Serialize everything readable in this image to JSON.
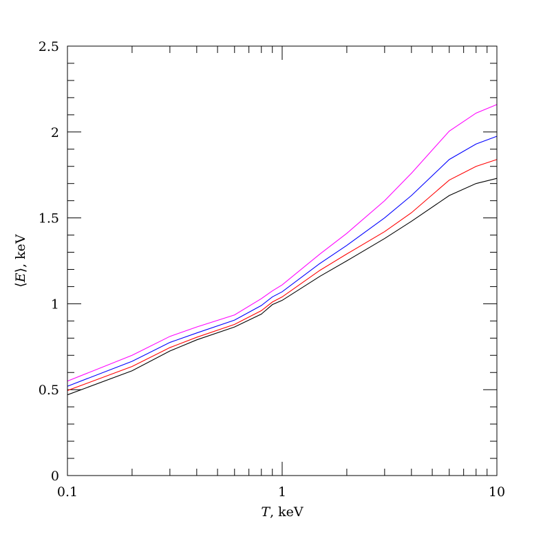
{
  "chart_data": {
    "type": "line",
    "x_scale": "log",
    "xlim": [
      0.1,
      10
    ],
    "ylim": [
      0,
      2.5
    ],
    "grid": false,
    "legend": "none",
    "xlabel": {
      "symbol": "T",
      "unit": ", keV"
    },
    "ylabel": {
      "open": "⟨",
      "symbol": "E",
      "close": "⟩",
      "unit": ", keV"
    },
    "x_ticks": [
      {
        "value": 0.1,
        "label": "0.1"
      },
      {
        "value": 1,
        "label": "1"
      },
      {
        "value": 10,
        "label": "10"
      }
    ],
    "y_ticks": [
      {
        "value": 0,
        "label": "0"
      },
      {
        "value": 0.5,
        "label": "0.5"
      },
      {
        "value": 1,
        "label": "1"
      },
      {
        "value": 1.5,
        "label": "1.5"
      },
      {
        "value": 2,
        "label": "2"
      },
      {
        "value": 2.5,
        "label": "2.5"
      }
    ],
    "x": [
      0.1,
      0.2,
      0.3,
      0.4,
      0.6,
      0.8,
      0.9,
      1.0,
      1.5,
      2.0,
      3.0,
      4.0,
      6.0,
      8.0,
      10.0
    ],
    "series": [
      {
        "color": "#ff00ff",
        "values": [
          0.55,
          0.7,
          0.81,
          0.865,
          0.935,
          1.03,
          1.075,
          1.11,
          1.29,
          1.41,
          1.6,
          1.76,
          2.005,
          2.11,
          2.16
        ]
      },
      {
        "color": "#0000ff",
        "values": [
          0.52,
          0.665,
          0.775,
          0.83,
          0.905,
          0.99,
          1.04,
          1.07,
          1.235,
          1.34,
          1.5,
          1.63,
          1.84,
          1.93,
          1.975
        ]
      },
      {
        "color": "#ff0000",
        "values": [
          0.495,
          0.635,
          0.745,
          0.805,
          0.88,
          0.96,
          1.01,
          1.04,
          1.195,
          1.29,
          1.42,
          1.53,
          1.72,
          1.8,
          1.84
        ]
      },
      {
        "color": "#000000",
        "values": [
          0.47,
          0.61,
          0.725,
          0.79,
          0.865,
          0.94,
          0.995,
          1.02,
          1.16,
          1.25,
          1.38,
          1.48,
          1.63,
          1.7,
          1.73
        ]
      }
    ]
  }
}
